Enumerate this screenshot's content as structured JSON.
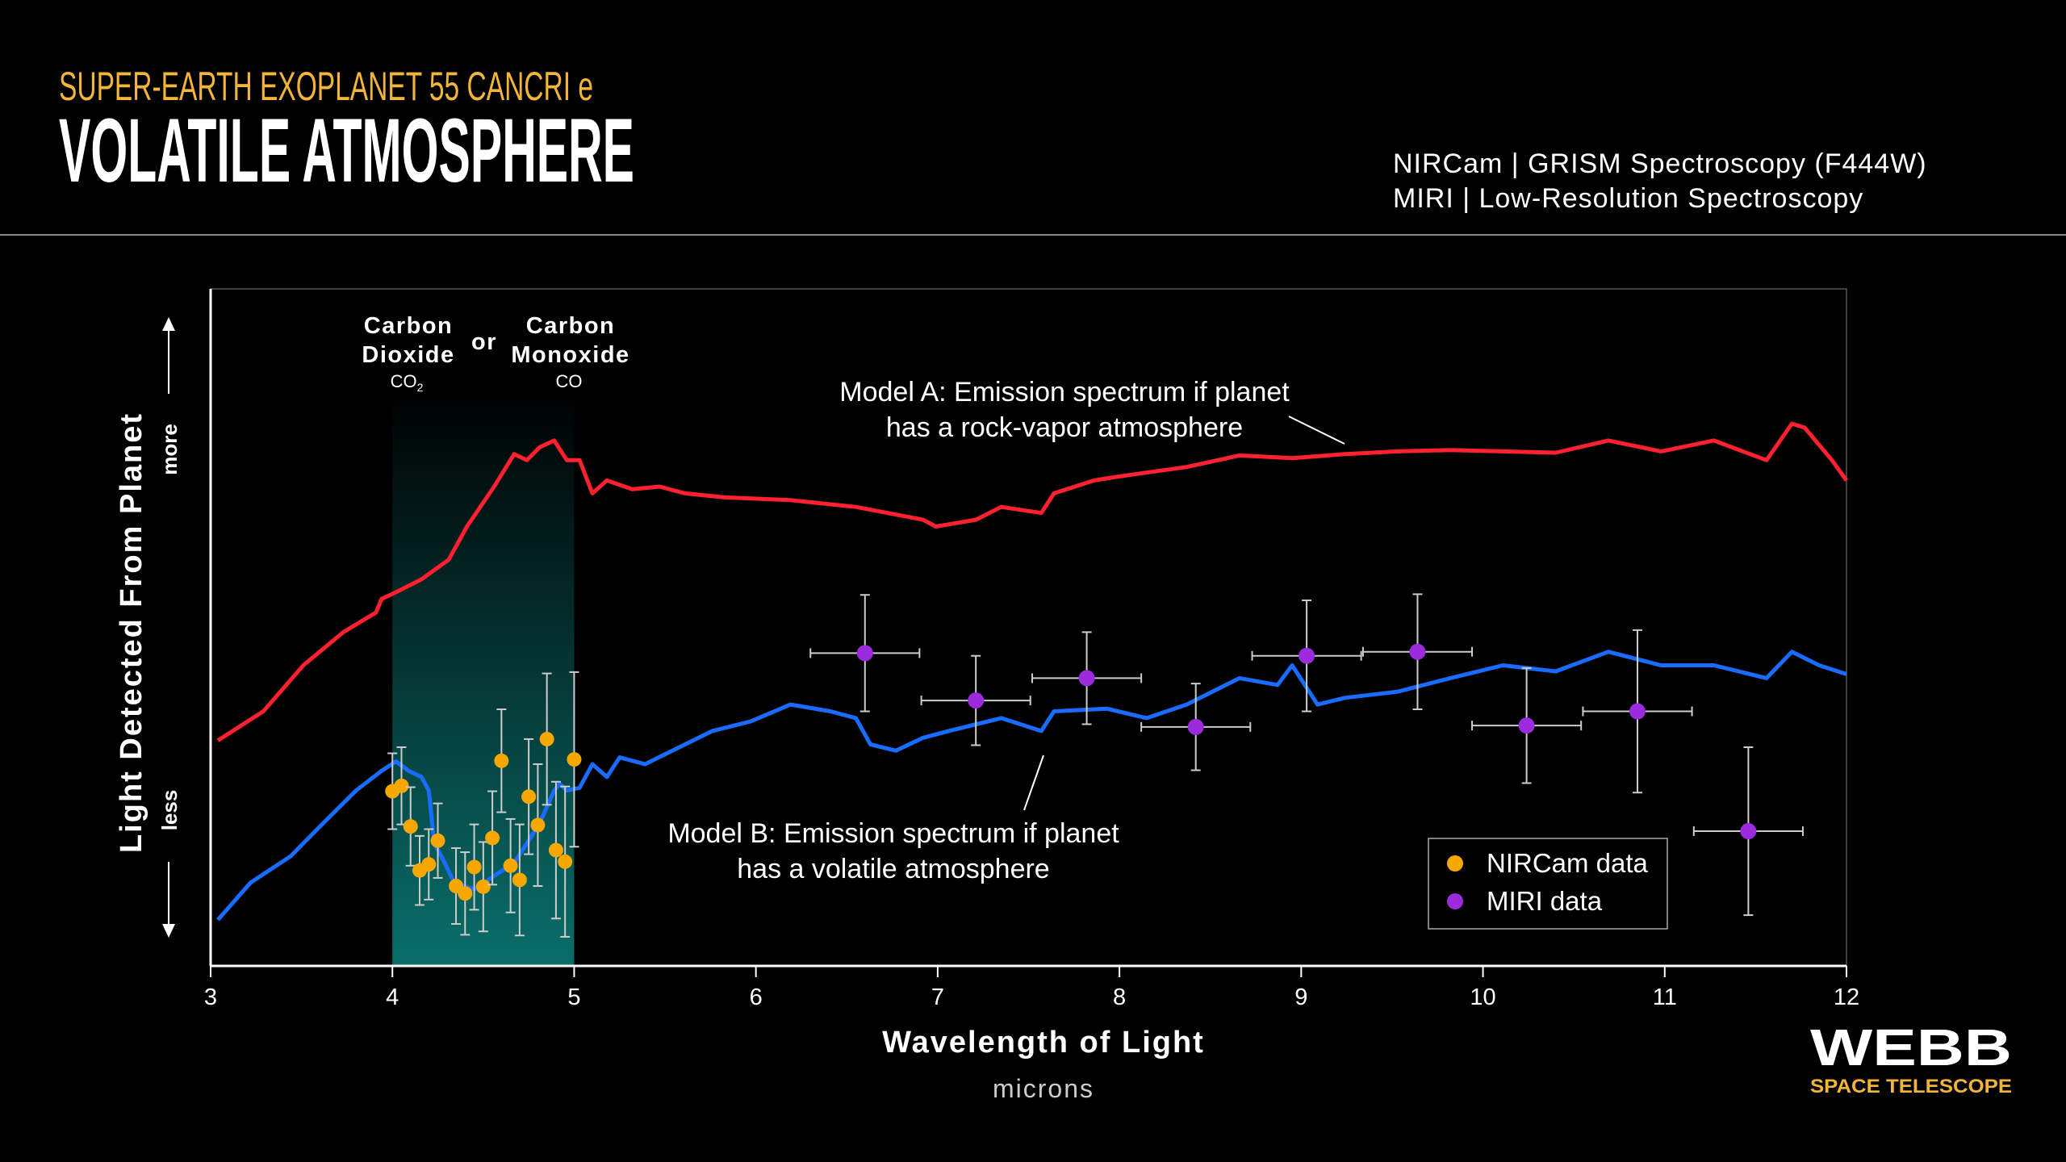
{
  "header": {
    "subtitle": "SUPER-EARTH EXOPLANET 55 CANCRI e",
    "title": "VOLATILE ATMOSPHERE",
    "instruments": [
      "NIRCam | GRISM Spectroscopy (F444W)",
      "MIRI | Low-Resolution Spectroscopy"
    ]
  },
  "logo": {
    "name": "WEBB",
    "tagline": "SPACE TELESCOPE"
  },
  "colors": {
    "subtitle": "#f2b53a",
    "model_a": "#ff2030",
    "model_b": "#1a6bff",
    "nircam": "#f7a800",
    "miri": "#9b2bdc",
    "band": "#0a6e6a"
  },
  "chart_data": {
    "type": "line",
    "title": "",
    "xlabel": "Wavelength of Light",
    "xunit": "microns",
    "ylabel": "Light Detected From Planet",
    "y_more": "more",
    "y_less": "less",
    "xlim": [
      3,
      12
    ],
    "ylim": [
      0,
      1
    ],
    "y_scale_note": "relative (no tick values printed)",
    "xticks": [
      "3",
      "4",
      "5",
      "6",
      "7",
      "8",
      "9",
      "10",
      "11",
      "12"
    ],
    "grid": false,
    "legend_position": "bottom-right",
    "band": {
      "x": [
        4,
        5
      ],
      "label_left": [
        "Carbon",
        "Dioxide"
      ],
      "formula_left": "CO",
      "formula_left_sub": "2",
      "label_mid": "or",
      "label_right": [
        "Carbon",
        "Monoxide"
      ],
      "formula_right": "CO"
    },
    "annotations": {
      "model_a": [
        "Model A: Emission spectrum if planet",
        "has a rock-vapor atmosphere"
      ],
      "model_b": [
        "Model B: Emission spectrum if planet",
        "has a volatile atmosphere"
      ]
    },
    "series": [
      {
        "name": "Model A",
        "kind": "line",
        "x": [
          3.04,
          3.29,
          3.51,
          3.73,
          3.91,
          3.94,
          4.02,
          4.16,
          4.31,
          4.41,
          4.56,
          4.67,
          4.74,
          4.81,
          4.89,
          4.96,
          5.03,
          5.1,
          5.18,
          5.32,
          5.47,
          5.61,
          5.83,
          6.19,
          6.55,
          6.92,
          6.99,
          7.21,
          7.35,
          7.57,
          7.64,
          7.86,
          8.0,
          8.37,
          8.66,
          8.95,
          9.24,
          9.53,
          9.82,
          10.11,
          10.4,
          10.69,
          10.98,
          11.27,
          11.56,
          11.7,
          11.77,
          11.92,
          12.0
        ],
        "y": [
          0.333,
          0.376,
          0.444,
          0.493,
          0.522,
          0.542,
          0.552,
          0.571,
          0.6,
          0.649,
          0.708,
          0.756,
          0.747,
          0.766,
          0.776,
          0.747,
          0.747,
          0.698,
          0.717,
          0.704,
          0.708,
          0.698,
          0.692,
          0.688,
          0.678,
          0.659,
          0.649,
          0.659,
          0.678,
          0.669,
          0.698,
          0.717,
          0.723,
          0.737,
          0.754,
          0.75,
          0.756,
          0.76,
          0.762,
          0.76,
          0.758,
          0.776,
          0.76,
          0.776,
          0.747,
          0.801,
          0.795,
          0.747,
          0.717
        ]
      },
      {
        "name": "Model B",
        "kind": "line",
        "x": [
          3.04,
          3.22,
          3.44,
          3.62,
          3.8,
          3.94,
          4.02,
          4.09,
          4.16,
          4.2,
          4.23,
          4.27,
          4.34,
          4.45,
          4.56,
          4.67,
          4.74,
          4.81,
          4.89,
          4.92,
          4.96,
          5.03,
          5.1,
          5.18,
          5.25,
          5.39,
          5.54,
          5.76,
          5.97,
          6.19,
          6.41,
          6.55,
          6.63,
          6.77,
          6.92,
          7.06,
          7.35,
          7.57,
          7.64,
          7.93,
          8.15,
          8.37,
          8.66,
          8.87,
          8.95,
          9.09,
          9.24,
          9.53,
          9.82,
          10.11,
          10.4,
          10.69,
          10.98,
          11.27,
          11.56,
          11.7,
          11.85,
          12.0
        ],
        "y": [
          0.068,
          0.123,
          0.162,
          0.211,
          0.259,
          0.288,
          0.302,
          0.288,
          0.279,
          0.259,
          0.181,
          0.162,
          0.123,
          0.113,
          0.133,
          0.152,
          0.181,
          0.211,
          0.259,
          0.269,
          0.259,
          0.263,
          0.298,
          0.279,
          0.308,
          0.298,
          0.318,
          0.347,
          0.361,
          0.386,
          0.376,
          0.366,
          0.327,
          0.318,
          0.337,
          0.347,
          0.366,
          0.347,
          0.376,
          0.38,
          0.366,
          0.386,
          0.425,
          0.415,
          0.444,
          0.386,
          0.396,
          0.405,
          0.425,
          0.444,
          0.435,
          0.464,
          0.444,
          0.444,
          0.425,
          0.464,
          0.444,
          0.431
        ]
      },
      {
        "name": "NIRCam data",
        "kind": "scatter",
        "x": [
          4.0,
          4.05,
          4.1,
          4.15,
          4.2,
          4.25,
          4.35,
          4.4,
          4.45,
          4.5,
          4.55,
          4.6,
          4.65,
          4.7,
          4.75,
          4.8,
          4.85,
          4.9,
          4.95,
          5.0
        ],
        "y": [
          0.258,
          0.266,
          0.206,
          0.141,
          0.15,
          0.185,
          0.118,
          0.107,
          0.146,
          0.117,
          0.189,
          0.303,
          0.148,
          0.127,
          0.25,
          0.208,
          0.335,
          0.171,
          0.154,
          0.305
        ],
        "yerr": [
          0.056,
          0.057,
          0.058,
          0.051,
          0.052,
          0.055,
          0.056,
          0.061,
          0.063,
          0.066,
          0.069,
          0.076,
          0.069,
          0.082,
          0.085,
          0.09,
          0.097,
          0.101,
          0.111,
          0.129
        ]
      },
      {
        "name": "MIRI data",
        "kind": "scatter",
        "x": [
          6.6,
          7.21,
          7.82,
          8.42,
          9.03,
          9.64,
          10.24,
          10.85,
          11.46
        ],
        "y": [
          0.462,
          0.392,
          0.425,
          0.353,
          0.458,
          0.464,
          0.355,
          0.376,
          0.199
        ],
        "xerr": [
          0.3,
          0.3,
          0.3,
          0.3,
          0.3,
          0.3,
          0.3,
          0.3,
          0.3
        ],
        "yerr": [
          0.086,
          0.066,
          0.068,
          0.064,
          0.082,
          0.085,
          0.085,
          0.12,
          0.124
        ]
      }
    ]
  }
}
